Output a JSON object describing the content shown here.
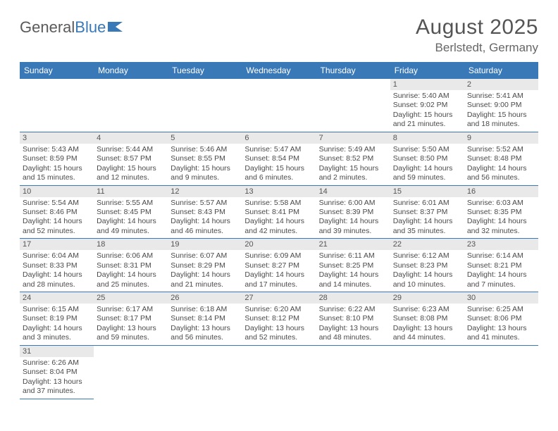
{
  "logo": {
    "text1": "General",
    "text2": "Blue"
  },
  "title": "August 2025",
  "location": "Berlstedt, Germany",
  "day_headers": [
    "Sunday",
    "Monday",
    "Tuesday",
    "Wednesday",
    "Thursday",
    "Friday",
    "Saturday"
  ],
  "colors": {
    "header_bg": "#3a79b7",
    "header_text": "#ffffff",
    "daynum_bg": "#e9e9e9",
    "row_border": "#3a79b7",
    "body_text": "#4a4a4a",
    "title_text": "#555555"
  },
  "weeks": [
    [
      {
        "n": "",
        "sr": "",
        "ss": "",
        "dl1": "",
        "dl2": ""
      },
      {
        "n": "",
        "sr": "",
        "ss": "",
        "dl1": "",
        "dl2": ""
      },
      {
        "n": "",
        "sr": "",
        "ss": "",
        "dl1": "",
        "dl2": ""
      },
      {
        "n": "",
        "sr": "",
        "ss": "",
        "dl1": "",
        "dl2": ""
      },
      {
        "n": "",
        "sr": "",
        "ss": "",
        "dl1": "",
        "dl2": ""
      },
      {
        "n": "1",
        "sr": "Sunrise: 5:40 AM",
        "ss": "Sunset: 9:02 PM",
        "dl1": "Daylight: 15 hours",
        "dl2": "and 21 minutes."
      },
      {
        "n": "2",
        "sr": "Sunrise: 5:41 AM",
        "ss": "Sunset: 9:00 PM",
        "dl1": "Daylight: 15 hours",
        "dl2": "and 18 minutes."
      }
    ],
    [
      {
        "n": "3",
        "sr": "Sunrise: 5:43 AM",
        "ss": "Sunset: 8:59 PM",
        "dl1": "Daylight: 15 hours",
        "dl2": "and 15 minutes."
      },
      {
        "n": "4",
        "sr": "Sunrise: 5:44 AM",
        "ss": "Sunset: 8:57 PM",
        "dl1": "Daylight: 15 hours",
        "dl2": "and 12 minutes."
      },
      {
        "n": "5",
        "sr": "Sunrise: 5:46 AM",
        "ss": "Sunset: 8:55 PM",
        "dl1": "Daylight: 15 hours",
        "dl2": "and 9 minutes."
      },
      {
        "n": "6",
        "sr": "Sunrise: 5:47 AM",
        "ss": "Sunset: 8:54 PM",
        "dl1": "Daylight: 15 hours",
        "dl2": "and 6 minutes."
      },
      {
        "n": "7",
        "sr": "Sunrise: 5:49 AM",
        "ss": "Sunset: 8:52 PM",
        "dl1": "Daylight: 15 hours",
        "dl2": "and 2 minutes."
      },
      {
        "n": "8",
        "sr": "Sunrise: 5:50 AM",
        "ss": "Sunset: 8:50 PM",
        "dl1": "Daylight: 14 hours",
        "dl2": "and 59 minutes."
      },
      {
        "n": "9",
        "sr": "Sunrise: 5:52 AM",
        "ss": "Sunset: 8:48 PM",
        "dl1": "Daylight: 14 hours",
        "dl2": "and 56 minutes."
      }
    ],
    [
      {
        "n": "10",
        "sr": "Sunrise: 5:54 AM",
        "ss": "Sunset: 8:46 PM",
        "dl1": "Daylight: 14 hours",
        "dl2": "and 52 minutes."
      },
      {
        "n": "11",
        "sr": "Sunrise: 5:55 AM",
        "ss": "Sunset: 8:45 PM",
        "dl1": "Daylight: 14 hours",
        "dl2": "and 49 minutes."
      },
      {
        "n": "12",
        "sr": "Sunrise: 5:57 AM",
        "ss": "Sunset: 8:43 PM",
        "dl1": "Daylight: 14 hours",
        "dl2": "and 46 minutes."
      },
      {
        "n": "13",
        "sr": "Sunrise: 5:58 AM",
        "ss": "Sunset: 8:41 PM",
        "dl1": "Daylight: 14 hours",
        "dl2": "and 42 minutes."
      },
      {
        "n": "14",
        "sr": "Sunrise: 6:00 AM",
        "ss": "Sunset: 8:39 PM",
        "dl1": "Daylight: 14 hours",
        "dl2": "and 39 minutes."
      },
      {
        "n": "15",
        "sr": "Sunrise: 6:01 AM",
        "ss": "Sunset: 8:37 PM",
        "dl1": "Daylight: 14 hours",
        "dl2": "and 35 minutes."
      },
      {
        "n": "16",
        "sr": "Sunrise: 6:03 AM",
        "ss": "Sunset: 8:35 PM",
        "dl1": "Daylight: 14 hours",
        "dl2": "and 32 minutes."
      }
    ],
    [
      {
        "n": "17",
        "sr": "Sunrise: 6:04 AM",
        "ss": "Sunset: 8:33 PM",
        "dl1": "Daylight: 14 hours",
        "dl2": "and 28 minutes."
      },
      {
        "n": "18",
        "sr": "Sunrise: 6:06 AM",
        "ss": "Sunset: 8:31 PM",
        "dl1": "Daylight: 14 hours",
        "dl2": "and 25 minutes."
      },
      {
        "n": "19",
        "sr": "Sunrise: 6:07 AM",
        "ss": "Sunset: 8:29 PM",
        "dl1": "Daylight: 14 hours",
        "dl2": "and 21 minutes."
      },
      {
        "n": "20",
        "sr": "Sunrise: 6:09 AM",
        "ss": "Sunset: 8:27 PM",
        "dl1": "Daylight: 14 hours",
        "dl2": "and 17 minutes."
      },
      {
        "n": "21",
        "sr": "Sunrise: 6:11 AM",
        "ss": "Sunset: 8:25 PM",
        "dl1": "Daylight: 14 hours",
        "dl2": "and 14 minutes."
      },
      {
        "n": "22",
        "sr": "Sunrise: 6:12 AM",
        "ss": "Sunset: 8:23 PM",
        "dl1": "Daylight: 14 hours",
        "dl2": "and 10 minutes."
      },
      {
        "n": "23",
        "sr": "Sunrise: 6:14 AM",
        "ss": "Sunset: 8:21 PM",
        "dl1": "Daylight: 14 hours",
        "dl2": "and 7 minutes."
      }
    ],
    [
      {
        "n": "24",
        "sr": "Sunrise: 6:15 AM",
        "ss": "Sunset: 8:19 PM",
        "dl1": "Daylight: 14 hours",
        "dl2": "and 3 minutes."
      },
      {
        "n": "25",
        "sr": "Sunrise: 6:17 AM",
        "ss": "Sunset: 8:17 PM",
        "dl1": "Daylight: 13 hours",
        "dl2": "and 59 minutes."
      },
      {
        "n": "26",
        "sr": "Sunrise: 6:18 AM",
        "ss": "Sunset: 8:14 PM",
        "dl1": "Daylight: 13 hours",
        "dl2": "and 56 minutes."
      },
      {
        "n": "27",
        "sr": "Sunrise: 6:20 AM",
        "ss": "Sunset: 8:12 PM",
        "dl1": "Daylight: 13 hours",
        "dl2": "and 52 minutes."
      },
      {
        "n": "28",
        "sr": "Sunrise: 6:22 AM",
        "ss": "Sunset: 8:10 PM",
        "dl1": "Daylight: 13 hours",
        "dl2": "and 48 minutes."
      },
      {
        "n": "29",
        "sr": "Sunrise: 6:23 AM",
        "ss": "Sunset: 8:08 PM",
        "dl1": "Daylight: 13 hours",
        "dl2": "and 44 minutes."
      },
      {
        "n": "30",
        "sr": "Sunrise: 6:25 AM",
        "ss": "Sunset: 8:06 PM",
        "dl1": "Daylight: 13 hours",
        "dl2": "and 41 minutes."
      }
    ],
    [
      {
        "n": "31",
        "sr": "Sunrise: 6:26 AM",
        "ss": "Sunset: 8:04 PM",
        "dl1": "Daylight: 13 hours",
        "dl2": "and 37 minutes."
      },
      {
        "n": "",
        "sr": "",
        "ss": "",
        "dl1": "",
        "dl2": ""
      },
      {
        "n": "",
        "sr": "",
        "ss": "",
        "dl1": "",
        "dl2": ""
      },
      {
        "n": "",
        "sr": "",
        "ss": "",
        "dl1": "",
        "dl2": ""
      },
      {
        "n": "",
        "sr": "",
        "ss": "",
        "dl1": "",
        "dl2": ""
      },
      {
        "n": "",
        "sr": "",
        "ss": "",
        "dl1": "",
        "dl2": ""
      },
      {
        "n": "",
        "sr": "",
        "ss": "",
        "dl1": "",
        "dl2": ""
      }
    ]
  ]
}
